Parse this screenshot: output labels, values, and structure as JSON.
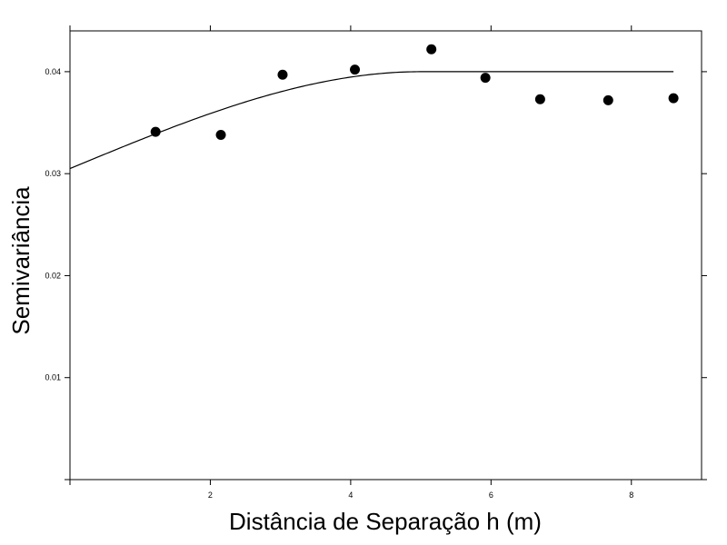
{
  "chart_data": {
    "type": "scatter",
    "title": "",
    "xlabel": "Distância de Separação h (m)",
    "ylabel": "Semivariância",
    "xlim": [
      0,
      9.0
    ],
    "ylim": [
      0,
      0.044
    ],
    "x_ticks": [
      2,
      4,
      6,
      8
    ],
    "x_tick_labels": [
      "2",
      "4",
      "6",
      "8"
    ],
    "y_ticks": [
      0.01,
      0.02,
      0.03,
      0.04
    ],
    "y_tick_labels": [
      "0.01",
      "0.02",
      "0.03",
      "0.04"
    ],
    "grid": false,
    "points": [
      {
        "x": 1.22,
        "y": 0.0341
      },
      {
        "x": 2.15,
        "y": 0.0338
      },
      {
        "x": 3.03,
        "y": 0.0397
      },
      {
        "x": 4.06,
        "y": 0.0402
      },
      {
        "x": 5.15,
        "y": 0.0422
      },
      {
        "x": 5.92,
        "y": 0.0394
      },
      {
        "x": 6.7,
        "y": 0.0373
      },
      {
        "x": 7.67,
        "y": 0.0372
      },
      {
        "x": 8.6,
        "y": 0.0374
      }
    ],
    "fitted_curve": {
      "model": "spherical",
      "nugget": 0.0305,
      "sill": 0.04,
      "range": 5.0,
      "x_max": 8.6
    }
  }
}
